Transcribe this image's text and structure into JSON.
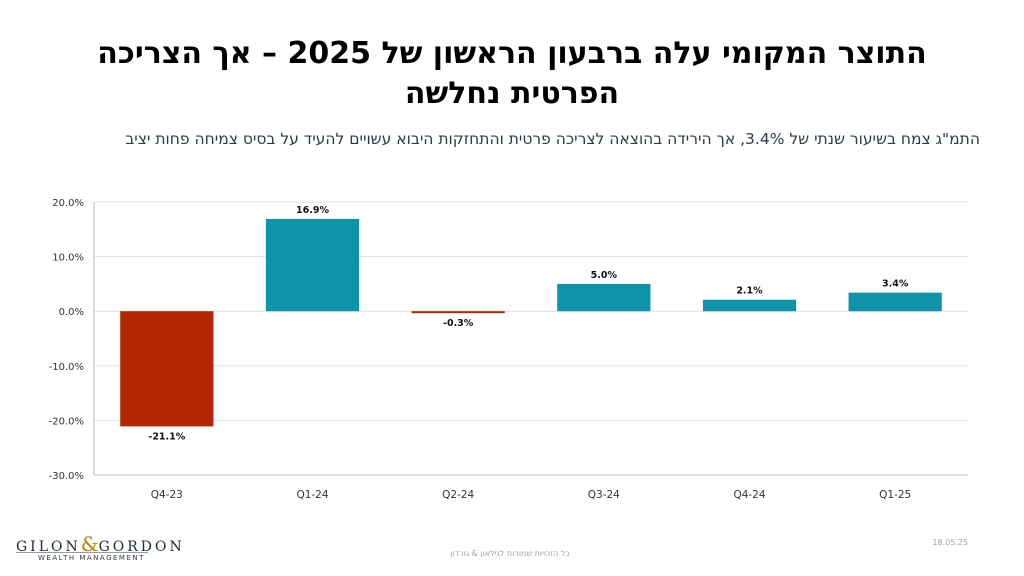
{
  "slide": {
    "title": "התוצר המקומי עלה ברבעון הראשון של 2025 – אך הצריכה הפרטית נחלשה",
    "subtitle": "התמ\"ג צמח בשיעור שנתי של 3.4%, אך הירידה בהוצאה לצריכה פרטית והתחזקות היבוא עשויים להעיד על בסיס צמיחה פחות יציב",
    "date": "18.05.25",
    "footer": "כל הזכויות שמורות לגילאון & גורדון"
  },
  "logo": {
    "name_left": "GILON",
    "ampersand": "&",
    "name_right": "GORDON",
    "tagline": "WEALTH MANAGEMENT"
  },
  "chart_data": {
    "type": "bar",
    "title": "",
    "xlabel": "",
    "ylabel": "",
    "categories": [
      "Q4-23",
      "Q1-24",
      "Q2-24",
      "Q3-24",
      "Q4-24",
      "Q1-25"
    ],
    "values": [
      -21.1,
      16.9,
      -0.3,
      5.0,
      2.1,
      3.4
    ],
    "data_labels": [
      "-21.1%",
      "16.9%",
      "-0.3%",
      "5.0%",
      "2.1%",
      "3.4%"
    ],
    "ylim": [
      -30,
      20
    ],
    "yticks": [
      20,
      10,
      0,
      -10,
      -20,
      -30
    ],
    "ytick_labels": [
      "20.0%",
      "10.0%",
      "0.0%",
      "-10.0%",
      "-20.0%",
      "-30.0%"
    ],
    "grid": true,
    "legend": "none",
    "colors": {
      "positive": "#0f93a8",
      "negative": "#b22600"
    }
  }
}
